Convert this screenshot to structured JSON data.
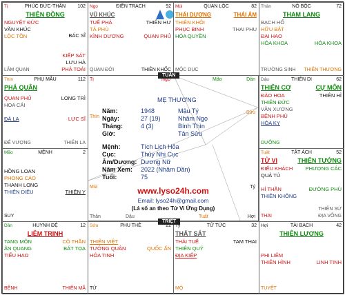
{
  "colors": {
    "red": "#d01010",
    "green": "#108a10",
    "orange": "#e07000",
    "blue": "#1a3a8a",
    "gray": "#555555",
    "dark": "#111111",
    "purple": "#7030a0"
  },
  "cells": {
    "ti_top": {
      "can": "Tị",
      "name": "PHÚC ĐỨC-THÂN",
      "num": "102",
      "main": "THIÊN ĐỒNG",
      "left": [
        {
          "t": "NGUYỆT ĐỨC",
          "c": "red"
        },
        {
          "t": "VĂN KHÚC",
          "c": "dark"
        },
        {
          "t": "LỘC TỒN",
          "c": "orange"
        }
      ],
      "right": [
        {
          "t": "",
          "c": "dark"
        },
        {
          "t": "",
          "c": "dark"
        },
        {
          "t": "BÁC SĨ",
          "c": "dark"
        },
        {
          "t": "",
          "c": "dark"
        },
        {
          "t": "",
          "c": "dark"
        },
        {
          "t": "KIẾP SÁT",
          "c": "red"
        },
        {
          "t": "LƯU HÀ",
          "c": "dark"
        },
        {
          "t": "PHÁ TOÁI",
          "c": "red"
        }
      ],
      "bl": "LÂM QUAN",
      "br": ""
    },
    "ngo_top": {
      "can": "Ngọ",
      "name": "ĐIỀN TRẠCH",
      "num": "92",
      "main": "VŨ KHÚC",
      "left": [
        {
          "t": "TUẾ PHÁ",
          "c": "red"
        },
        {
          "t": "TẢ PHÙ",
          "c": "orange"
        },
        {
          "t": "KÌNH DƯƠNG",
          "c": "red"
        }
      ],
      "right": [
        {
          "t": "THIÊN HƯ",
          "c": "dark"
        },
        {
          "t": "",
          "c": "dark"
        },
        {
          "t": "QUAN PHỦ",
          "c": "red"
        }
      ],
      "bl": "QUAN ĐỚI",
      "br": "THIÊN KHỐC"
    },
    "mui_top": {
      "can": "Mùi",
      "name": "QUAN LỘC",
      "num": "82",
      "main": "THÁI DƯƠNG",
      "main2": "THÁI ÂM",
      "left": [
        {
          "t": "THIÊN KHÔI",
          "c": "orange"
        },
        {
          "t": "PHỤC BINH",
          "c": "red"
        },
        {
          "t": "HÓA QUYỀN",
          "c": "green"
        }
      ],
      "right": [
        {
          "t": "THAI PHU",
          "c": "gray"
        }
      ],
      "bl": "MỘC DỤC",
      "br": ""
    },
    "than_top": {
      "can": "Thân",
      "name": "NÔ BỘC",
      "num": "72",
      "main": "THAM LANG",
      "left": [
        {
          "t": "BẠCH HỔ",
          "c": "dark"
        },
        {
          "t": "HỮU BẬT",
          "c": "orange"
        },
        {
          "t": "ĐẠI HAO",
          "c": "red"
        },
        {
          "t": "HÓA KHOA",
          "c": "green"
        }
      ],
      "right": [
        {
          "t": "",
          "c": "dark"
        },
        {
          "t": "",
          "c": "dark"
        },
        {
          "t": "",
          "c": "dark"
        },
        {
          "t": "HÓA KHOA",
          "c": "green"
        }
      ],
      "bl": "TRƯỜNG SINH",
      "br": "THIÊN THƯƠNG"
    },
    "thin_l": {
      "can": "Thìn",
      "name": "PHỤ MẪU",
      "num": "112",
      "main": "PHÁ QUÂN",
      "left": [
        {
          "t": "QUAN PHỦ",
          "c": "red"
        },
        {
          "t": "HOA CÁI",
          "c": "gray"
        },
        {
          "t": "",
          "c": "dark"
        },
        {
          "t": "ĐÀ LA",
          "c": "blue"
        }
      ],
      "right": [
        {
          "t": "LONG TRÌ",
          "c": "dark"
        },
        {
          "t": "",
          "c": "dark"
        },
        {
          "t": "",
          "c": "dark"
        },
        {
          "t": "LỰC SĨ",
          "c": "red"
        }
      ],
      "bl": "ĐẾ VƯỢNG",
      "br": "THIÊN LA"
    },
    "dau_r": {
      "can": "Dậu",
      "name": "THIÊN DI",
      "num": "62",
      "main": "THIÊN CƠ",
      "main2": "CỰ MÔN",
      "left": [
        {
          "t": "ĐÀO HOA",
          "c": "red"
        },
        {
          "t": "THIÊN ĐỨC",
          "c": "green"
        },
        {
          "t": "VĂN XƯƠNG",
          "c": "gray"
        },
        {
          "t": "BỆNH PHÙ",
          "c": "red"
        },
        {
          "t": "HÓA KỴ",
          "c": "blue"
        }
      ],
      "right": [
        {
          "t": "THIÊN HỈ",
          "c": "dark"
        }
      ],
      "bl": "DƯỠNG",
      "br": ""
    },
    "mao_l": {
      "can": "Mão",
      "name": "MỆNH",
      "num": "2",
      "main": "",
      "left": [
        {
          "t": "HỒNG LOAN",
          "c": "dark"
        },
        {
          "t": "PHONG CÁO",
          "c": "orange"
        },
        {
          "t": "THANH LONG",
          "c": "dark"
        },
        {
          "t": "THIÊN DIÊU",
          "c": "blue"
        }
      ],
      "right": [
        {
          "t": "",
          "c": "dark"
        },
        {
          "t": "",
          "c": "dark"
        },
        {
          "t": "",
          "c": "dark"
        },
        {
          "t": "THIÊN Y",
          "c": "dark"
        }
      ],
      "bl": "SUY",
      "br": ""
    },
    "tuat_r": {
      "can": "Tuất",
      "name": "TẬT ÁCH",
      "num": "52",
      "main": "TỬ VI",
      "main2": "THIÊN TƯỚNG",
      "left": [
        {
          "t": "ĐIẾU KHÁCH",
          "c": "red"
        },
        {
          "t": "QUẢ TÚ",
          "c": "dark"
        },
        {
          "t": "",
          "c": "dark"
        },
        {
          "t": "HỈ THẦN",
          "c": "red"
        },
        {
          "t": "THIÊN KHÔNG",
          "c": "blue"
        }
      ],
      "right": [
        {
          "t": "PHƯỢNG CÁC",
          "c": "green"
        },
        {
          "t": "",
          "c": "dark"
        },
        {
          "t": "",
          "c": "dark"
        },
        {
          "t": "ĐƯỜNG PHÙ",
          "c": "green"
        }
      ],
      "bl": "THAI",
      "br": "THIÊN SỨ\nĐỊA VÕNG"
    },
    "dan_b": {
      "can": "Dần",
      "name": "HUYNH ĐỆ",
      "num": "12",
      "main": "LIÊM TRINH",
      "left": [
        {
          "t": "TANG MÔN",
          "c": "green"
        },
        {
          "t": "ÂN QUANG",
          "c": "green"
        },
        {
          "t": "TIỂU HAO",
          "c": "red"
        }
      ],
      "right": [
        {
          "t": "CÔ THẦN",
          "c": "orange"
        },
        {
          "t": "BÁT TỌA",
          "c": "green"
        }
      ],
      "bl": "BỆNH",
      "br": "THIÊN MÃ"
    },
    "suu_b": {
      "can": "Sửu",
      "name": "PHU THÊ",
      "num": "22",
      "main": "",
      "left": [
        {
          "t": "THIÊN VIỆT",
          "c": "orange"
        },
        {
          "t": "TƯỚNG QUÂN",
          "c": "red"
        },
        {
          "t": "HÓA TINH",
          "c": "red"
        }
      ],
      "right": [
        {
          "t": "QUỐC ẤN",
          "c": "orange"
        }
      ],
      "bl": "TỬ",
      "br": ""
    },
    "ty_b": {
      "can": "Tý",
      "name": "TỬ TỨC",
      "num": "32",
      "main": "THẤT SÁT",
      "left": [
        {
          "t": "THÁI TUẾ",
          "c": "red"
        },
        {
          "t": "THIÊN QUÝ",
          "c": "green"
        },
        {
          "t": "ĐỊA KIẾP",
          "c": "red"
        }
      ],
      "right": [
        {
          "t": "TAM THAI",
          "c": "dark"
        }
      ],
      "bl": "MỘ",
      "br": ""
    },
    "hoi_b": {
      "can": "Hợi",
      "name": "TÀI BẠCH",
      "num": "42",
      "main": "THIÊN LƯƠNG",
      "left": [
        {
          "t": "",
          "c": "dark"
        },
        {
          "t": "PHI LIÊM",
          "c": "red"
        },
        {
          "t": "THIÊN HÌNH",
          "c": "red"
        }
      ],
      "right": [
        {
          "t": "",
          "c": "dark"
        },
        {
          "t": "",
          "c": "dark"
        },
        {
          "t": "LINH TINH",
          "c": "red"
        }
      ],
      "bl": "TUYỆT",
      "br": ""
    }
  },
  "tags": {
    "tuan": "TUẦN",
    "triet": "TRIỆT"
  },
  "center": {
    "ti": "Tị",
    "ngo": "Ngọ",
    "mao": "Mão",
    "dan": "Dần",
    "thin": "Thìn",
    "dau": "Dậu",
    "suu": "Sửu",
    "mui": "Mùi",
    "tuat": "Tuất",
    "ty": "Tý",
    "than": "Thân",
    "hoi": "Hợi",
    "ty_b": "Tý",
    "name": "MẸ THƯƠNG",
    "rows": [
      {
        "lbl": "Năm:",
        "v1": "1948",
        "v2": "Mậu Tý"
      },
      {
        "lbl": "Ngày:",
        "v1": "27 (19)",
        "v2": "Nhâm Ngọ"
      },
      {
        "lbl": "Tháng:",
        "v1": "4 (3)",
        "v2": "Bính Thìn"
      },
      {
        "lbl": "Giờ:",
        "v1": "",
        "v2": "Tân Sửu"
      }
    ],
    "rows2": [
      {
        "lbl": "Mệnh:",
        "val": "Tích Lịch Hỏa"
      },
      {
        "lbl": "Cục:",
        "val": "Thủy Nhị Cục"
      },
      {
        "lbl": "Âm/Dương:",
        "val": "Dương Nữ"
      },
      {
        "lbl": "Năm Xem:",
        "val": "2022 (Nhâm Dần)"
      },
      {
        "lbl": "Tuổi:",
        "val": "75"
      }
    ],
    "site": "www.lyso24h.com",
    "email": "Email: lyso24h@gmail.com",
    "slogan": "(Lá số an theo Tử Vi Ứng Dụng)"
  }
}
